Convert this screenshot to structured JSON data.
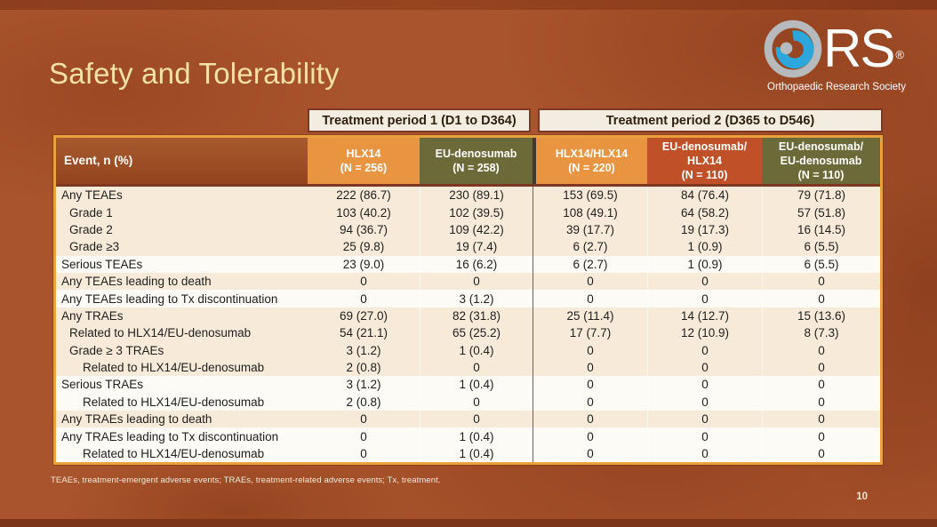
{
  "slide": {
    "title": "Safety and Tolerability",
    "page_number": "10",
    "footnote": "TEAEs, treatment-emergent adverse events; TRAEs, treatment-related adverse events; Tx, treatment."
  },
  "logo": {
    "text": "RS",
    "registered": "®",
    "subtitle": "Orthopaedic Research Society"
  },
  "table": {
    "period_headers": [
      {
        "label": "Treatment period 1 (D1 to D364)"
      },
      {
        "label": "Treatment period 2 (D365 to D546)"
      }
    ],
    "event_header": "Event, n (%)",
    "columns": [
      {
        "id": "hlx14",
        "color": "orange",
        "lines": [
          "HLX14",
          "(N = 256)"
        ]
      },
      {
        "id": "eu-denosumab",
        "color": "olive",
        "lines": [
          "EU-denosumab",
          "(N = 258)"
        ]
      },
      {
        "id": "hlx14-hlx14",
        "color": "orange",
        "lines": [
          "HLX14/HLX14",
          "(N = 220)"
        ]
      },
      {
        "id": "eu-denosumab-hlx14",
        "color": "red",
        "lines": [
          "EU-denosumab/",
          "HLX14",
          "(N = 110)"
        ]
      },
      {
        "id": "eu-denosumab-eu-denosumab",
        "color": "olive",
        "lines": [
          "EU-denosumab/",
          "EU-denosumab",
          "(N = 110)"
        ]
      }
    ],
    "rows": [
      {
        "label": "Any TEAEs",
        "indent": 0,
        "band": "beige",
        "values": [
          "222 (86.7)",
          "230 (89.1)",
          "153 (69.5)",
          "84 (76.4)",
          "79 (71.8)"
        ]
      },
      {
        "label": "Grade 1",
        "indent": 1,
        "band": "beige",
        "values": [
          "103 (40.2)",
          "102 (39.5)",
          "108 (49.1)",
          "64 (58.2)",
          "57 (51.8)"
        ]
      },
      {
        "label": "Grade 2",
        "indent": 1,
        "band": "beige",
        "values": [
          "94 (36.7)",
          "109 (42.2)",
          "39 (17.7)",
          "19 (17.3)",
          "16 (14.5)"
        ]
      },
      {
        "label": "Grade ≥3",
        "indent": 1,
        "band": "beige",
        "values": [
          "25 (9.8)",
          "19 (7.4)",
          "6 (2.7)",
          "1 (0.9)",
          "6 (5.5)"
        ]
      },
      {
        "label": "Serious TEAEs",
        "indent": 0,
        "band": "white",
        "values": [
          "23 (9.0)",
          "16 (6.2)",
          "6 (2.7)",
          "1 (0.9)",
          "6 (5.5)"
        ]
      },
      {
        "label": "Any TEAEs leading to death",
        "indent": 0,
        "band": "beige",
        "values": [
          "0",
          "0",
          "0",
          "0",
          "0"
        ]
      },
      {
        "label": "Any TEAEs leading to Tx discontinuation",
        "indent": 0,
        "band": "white",
        "values": [
          "0",
          "3 (1.2)",
          "0",
          "0",
          "0"
        ]
      },
      {
        "label": "Any TRAEs",
        "indent": 0,
        "band": "beige",
        "values": [
          "69 (27.0)",
          "82 (31.8)",
          "25 (11.4)",
          "14 (12.7)",
          "15 (13.6)"
        ]
      },
      {
        "label": "Related to HLX14/EU-denosumab",
        "indent": 1,
        "band": "beige",
        "values": [
          "54 (21.1)",
          "65 (25.2)",
          "17 (7.7)",
          "12 (10.9)",
          "8 (7.3)"
        ]
      },
      {
        "label": "Grade ≥ 3 TRAEs",
        "indent": 1,
        "band": "beige",
        "values": [
          "3 (1.2)",
          "1 (0.4)",
          "0",
          "0",
          "0"
        ]
      },
      {
        "label": "Related to HLX14/EU-denosumab",
        "indent": 2,
        "band": "beige",
        "values": [
          "2 (0.8)",
          "0",
          "0",
          "0",
          "0"
        ]
      },
      {
        "label": "Serious TRAEs",
        "indent": 0,
        "band": "white",
        "values": [
          "3 (1.2)",
          "1 (0.4)",
          "0",
          "0",
          "0"
        ]
      },
      {
        "label": "Related to HLX14/EU-denosumab",
        "indent": 2,
        "band": "white",
        "values": [
          "2 (0.8)",
          "0",
          "0",
          "0",
          "0"
        ]
      },
      {
        "label": "Any TRAEs leading to death",
        "indent": 0,
        "band": "beige",
        "values": [
          "0",
          "0",
          "0",
          "0",
          "0"
        ]
      },
      {
        "label": "Any TRAEs leading to Tx discontinuation",
        "indent": 0,
        "band": "white",
        "values": [
          "0",
          "1 (0.4)",
          "0",
          "0",
          "0"
        ]
      },
      {
        "label": "Related to HLX14/EU-denosumab",
        "indent": 2,
        "band": "white",
        "values": [
          "0",
          "1 (0.4)",
          "0",
          "0",
          "0"
        ]
      }
    ]
  },
  "colors": {
    "background": "#a9542c",
    "title_text": "#f3e1a6",
    "header_orange": "#e99440",
    "header_olive": "#6d6a39",
    "header_red": "#c05028",
    "event_header_bg": "#9c4c24",
    "row_beige": "#f7ead9",
    "row_white": "#fdfbf6",
    "table_border": "#e9a23c",
    "period_box_bg": "#f2ece1",
    "period_box_border": "#7d3722",
    "logo_blue": "#2ba7db",
    "logo_gray": "#b7babd"
  }
}
